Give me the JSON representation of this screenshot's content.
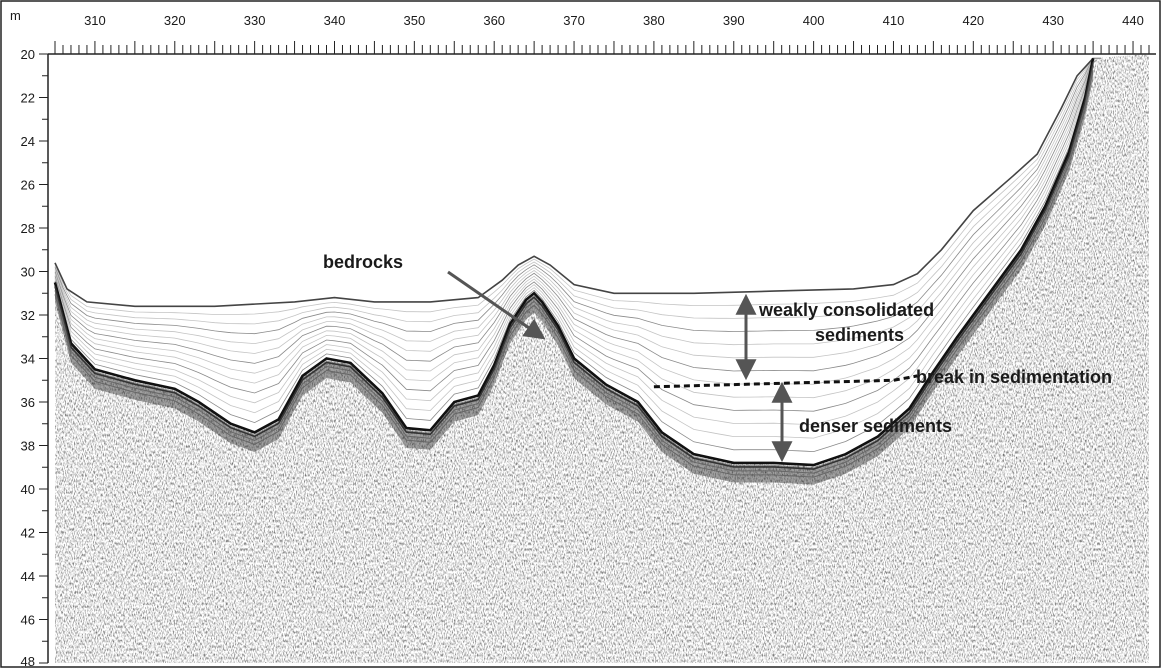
{
  "figure": {
    "x_unit_label": "m",
    "x_axis": {
      "min": 305,
      "max": 442,
      "label_step": 10,
      "minor_step": 1
    },
    "y_axis": {
      "min": 20,
      "max": 48,
      "label_step": 2,
      "minor_step": 1
    },
    "x_tick_labels": [
      "310",
      "320",
      "330",
      "340",
      "350",
      "360",
      "370",
      "380",
      "390",
      "400",
      "410",
      "420",
      "430",
      "440"
    ],
    "y_tick_labels": [
      "20",
      "22",
      "24",
      "26",
      "28",
      "30",
      "32",
      "34",
      "36",
      "38",
      "40",
      "42",
      "44",
      "46",
      "48"
    ],
    "annotations": {
      "bedrocks": "bedrocks",
      "weakly_line1": "weakly consolidated",
      "weakly_line2": "sediments",
      "break": "break in sedimentation",
      "denser": "denser sediments"
    },
    "seabed_profile": [
      [
        305,
        29.6
      ],
      [
        306.5,
        30.8
      ],
      [
        309,
        31.4
      ],
      [
        315,
        31.6
      ],
      [
        325,
        31.6
      ],
      [
        335,
        31.4
      ],
      [
        340,
        31.2
      ],
      [
        345,
        31.4
      ],
      [
        352,
        31.4
      ],
      [
        358,
        31.2
      ],
      [
        361,
        30.4
      ],
      [
        363,
        29.7
      ],
      [
        365,
        29.3
      ],
      [
        367,
        29.7
      ],
      [
        370,
        30.6
      ],
      [
        375,
        31.0
      ],
      [
        385,
        31.0
      ],
      [
        395,
        30.9
      ],
      [
        405,
        30.8
      ],
      [
        410,
        30.6
      ],
      [
        413,
        30.1
      ],
      [
        416,
        29.0
      ],
      [
        420,
        27.2
      ],
      [
        425,
        25.6
      ],
      [
        428,
        24.6
      ],
      [
        431,
        22.5
      ],
      [
        433,
        21.0
      ],
      [
        435,
        20.2
      ]
    ],
    "basement_profile": [
      [
        305,
        30.5
      ],
      [
        307,
        33.3
      ],
      [
        310,
        34.5
      ],
      [
        315,
        35.0
      ],
      [
        320,
        35.4
      ],
      [
        323,
        36.0
      ],
      [
        327,
        37.0
      ],
      [
        330,
        37.4
      ],
      [
        333,
        36.8
      ],
      [
        336,
        34.8
      ],
      [
        339,
        34.0
      ],
      [
        342,
        34.2
      ],
      [
        346,
        35.6
      ],
      [
        349,
        37.2
      ],
      [
        352,
        37.3
      ],
      [
        355,
        36.0
      ],
      [
        358,
        35.7
      ],
      [
        360,
        34.3
      ],
      [
        362,
        32.4
      ],
      [
        364,
        31.3
      ],
      [
        365,
        31.0
      ],
      [
        366,
        31.4
      ],
      [
        368,
        32.5
      ],
      [
        370,
        34.0
      ],
      [
        374,
        35.2
      ],
      [
        378,
        36.0
      ],
      [
        381,
        37.4
      ],
      [
        385,
        38.4
      ],
      [
        390,
        38.8
      ],
      [
        395,
        38.8
      ],
      [
        400,
        38.9
      ],
      [
        404,
        38.4
      ],
      [
        408,
        37.6
      ],
      [
        412,
        36.3
      ],
      [
        415,
        34.6
      ],
      [
        418,
        33.0
      ],
      [
        422,
        31.0
      ],
      [
        426,
        29.0
      ],
      [
        429,
        27.0
      ],
      [
        432,
        24.5
      ],
      [
        434,
        22.0
      ],
      [
        435,
        20.2
      ]
    ],
    "break_profile": [
      [
        380,
        35.3
      ],
      [
        390,
        35.2
      ],
      [
        400,
        35.1
      ],
      [
        410,
        35.0
      ],
      [
        413,
        34.8
      ]
    ]
  }
}
